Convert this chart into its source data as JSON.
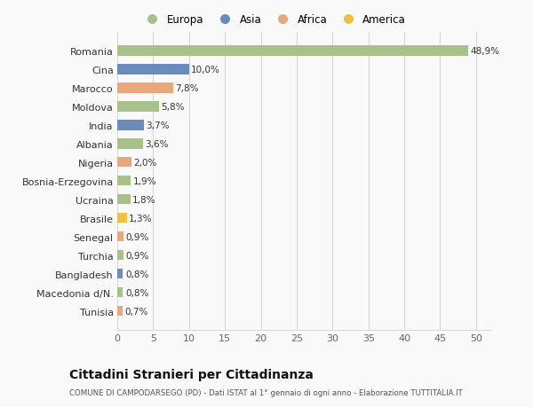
{
  "categories": [
    "Tunisia",
    "Macedonia d/N.",
    "Bangladesh",
    "Turchia",
    "Senegal",
    "Brasile",
    "Ucraina",
    "Bosnia-Erzegovina",
    "Nigeria",
    "Albania",
    "India",
    "Moldova",
    "Marocco",
    "Cina",
    "Romania"
  ],
  "values": [
    0.7,
    0.8,
    0.8,
    0.9,
    0.9,
    1.3,
    1.8,
    1.9,
    2.0,
    3.6,
    3.7,
    5.8,
    7.8,
    10.0,
    48.9
  ],
  "labels": [
    "0,7%",
    "0,8%",
    "0,8%",
    "0,9%",
    "0,9%",
    "1,3%",
    "1,8%",
    "1,9%",
    "2,0%",
    "3,6%",
    "3,7%",
    "5,8%",
    "7,8%",
    "10,0%",
    "48,9%"
  ],
  "colors": [
    "#e8a87c",
    "#a8c08a",
    "#6b8cba",
    "#a8c08a",
    "#e8a87c",
    "#f0c040",
    "#a8c08a",
    "#a8c08a",
    "#e8a87c",
    "#a8c08a",
    "#6b8cba",
    "#a8c08a",
    "#e8a87c",
    "#6b8cba",
    "#a8c08a"
  ],
  "legend_names": [
    "Europa",
    "Asia",
    "Africa",
    "America"
  ],
  "legend_colors": [
    "#a8c08a",
    "#6b8cba",
    "#e8a87c",
    "#f0c040"
  ],
  "title": "Cittadini Stranieri per Cittadinanza",
  "subtitle": "COMUNE DI CAMPODARSEGO (PD) - Dati ISTAT al 1° gennaio di ogni anno - Elaborazione TUTTITALIA.IT",
  "xlim": [
    0,
    52
  ],
  "xticks": [
    0,
    5,
    10,
    15,
    20,
    25,
    30,
    35,
    40,
    45,
    50
  ],
  "background_color": "#f9f9f9",
  "grid_color": "#d8d8d8",
  "bar_height": 0.55
}
